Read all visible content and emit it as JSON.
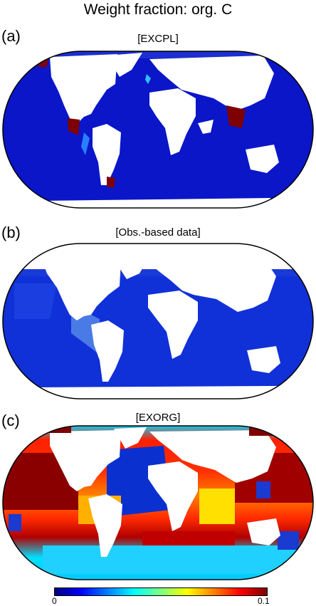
{
  "figure": {
    "title": "Weight fraction: org. C",
    "panels": [
      {
        "letter": "(a)",
        "title": "[EXCPL]"
      },
      {
        "letter": "(b)",
        "title": "[Obs.-based data]"
      },
      {
        "letter": "(c)",
        "title": "[EXORG]"
      }
    ],
    "colorbar": {
      "min_label": "0",
      "max_label": "0.1",
      "colors": [
        "#00007f",
        "#0000ff",
        "#007fff",
        "#00ffff",
        "#7fff7f",
        "#ffff00",
        "#ff7f00",
        "#ff0000",
        "#7f0000"
      ]
    }
  }
}
